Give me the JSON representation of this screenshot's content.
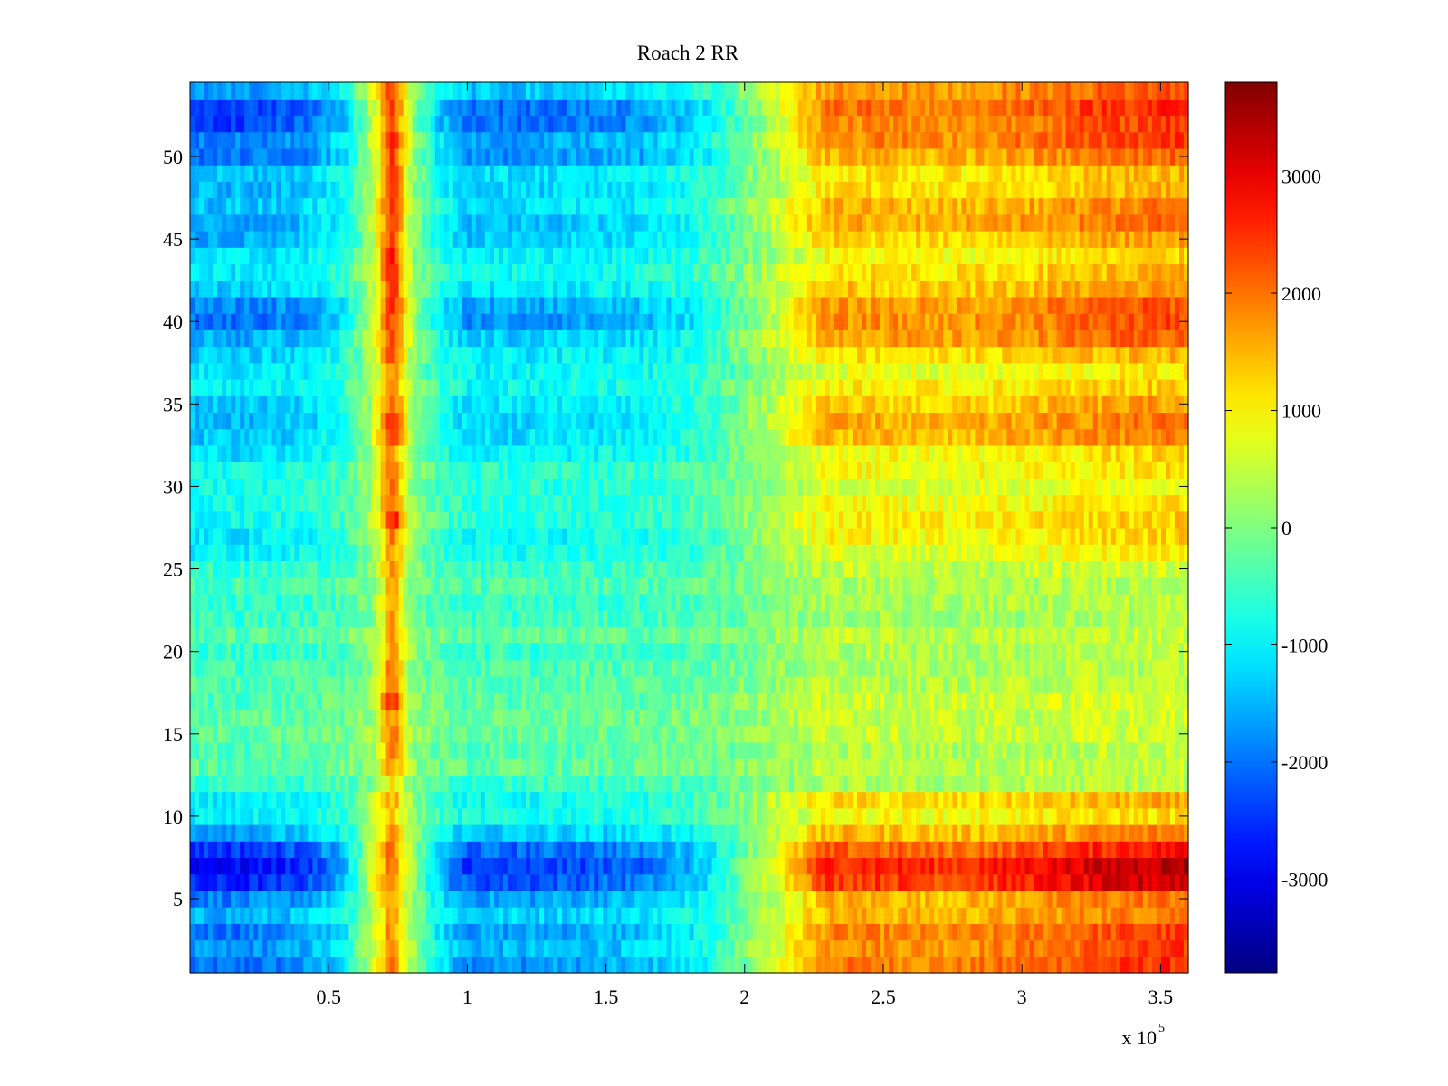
{
  "chart_data": {
    "type": "heatmap",
    "title": "Roach 2 RR",
    "xlabel": "",
    "ylabel": "",
    "x_exponent_label": "x 10",
    "x_exponent_power": "5",
    "xlim": [
      0,
      3.6
    ],
    "ylim": [
      0.5,
      54.5
    ],
    "xticks": [
      0.5,
      1,
      1.5,
      2,
      2.5,
      3,
      3.5
    ],
    "xtick_labels": [
      "0.5",
      "1",
      "1.5",
      "2",
      "2.5",
      "3",
      "3.5"
    ],
    "yticks": [
      5,
      10,
      15,
      20,
      25,
      30,
      35,
      40,
      45,
      50
    ],
    "ytick_labels": [
      "5",
      "10",
      "15",
      "20",
      "25",
      "30",
      "35",
      "40",
      "45",
      "50"
    ],
    "colormap": "jet",
    "clim": [
      -3800,
      3800
    ],
    "colorbar": {
      "ticks": [
        -3000,
        -2000,
        -1000,
        0,
        1000,
        2000,
        3000
      ],
      "tick_labels": [
        "-3000",
        "-2000",
        "-1000",
        "0",
        "1000",
        "2000",
        "3000"
      ]
    },
    "rows": 54,
    "grid": false,
    "x_profile": {
      "x": [
        0,
        0.2,
        0.4,
        0.55,
        0.65,
        0.72,
        0.8,
        0.9,
        1.0,
        1.2,
        1.4,
        1.6,
        1.8,
        1.9,
        2.0,
        2.1,
        2.2,
        2.3,
        2.5,
        2.7,
        2.9,
        3.1,
        3.3,
        3.45,
        3.6
      ],
      "value": [
        -2000,
        -2000,
        -1800,
        -1200,
        300,
        1200,
        200,
        -1100,
        -1700,
        -1700,
        -1600,
        -1500,
        -1100,
        -700,
        -100,
        500,
        1200,
        1800,
        1800,
        1700,
        1800,
        2000,
        2200,
        2300,
        2400
      ]
    },
    "row_profile": {
      "row": [
        1,
        2,
        3,
        4,
        5,
        6,
        7,
        8,
        9,
        10,
        11,
        12,
        13,
        14,
        15,
        16,
        17,
        18,
        19,
        20,
        21,
        22,
        23,
        24,
        25,
        26,
        27,
        28,
        29,
        30,
        31,
        32,
        33,
        34,
        35,
        36,
        37,
        38,
        39,
        40,
        41,
        42,
        43,
        44,
        45,
        46,
        47,
        48,
        49,
        50,
        51,
        52,
        53,
        54
      ],
      "amplitude": [
        1.05,
        0.95,
        1.0,
        0.8,
        0.9,
        1.35,
        1.45,
        1.2,
        0.8,
        0.5,
        0.6,
        0.25,
        0.2,
        0.2,
        0.2,
        0.2,
        0.25,
        0.2,
        0.2,
        0.25,
        0.2,
        0.2,
        0.25,
        0.2,
        0.3,
        0.45,
        0.55,
        0.5,
        0.45,
        0.4,
        0.45,
        0.55,
        0.75,
        0.8,
        0.7,
        0.55,
        0.5,
        0.65,
        0.85,
        1.0,
        0.95,
        0.7,
        0.6,
        0.55,
        0.75,
        0.85,
        0.75,
        0.7,
        0.65,
        0.95,
        1.0,
        1.1,
        1.15,
        0.9
      ],
      "peak_boost": [
        700,
        700,
        700,
        700,
        800,
        600,
        400,
        700,
        700,
        800,
        800,
        900,
        1400,
        1700,
        1600,
        1300,
        2200,
        1800,
        1800,
        1700,
        1500,
        1500,
        1300,
        1300,
        1300,
        1300,
        1300,
        2100,
        1500,
        1500,
        1300,
        1300,
        1400,
        1500,
        1400,
        1300,
        1400,
        1600,
        1400,
        1300,
        1500,
        1700,
        2000,
        2100,
        1600,
        1500,
        1400,
        1800,
        1900,
        1500,
        1400,
        1200,
        1200,
        1200
      ]
    }
  }
}
